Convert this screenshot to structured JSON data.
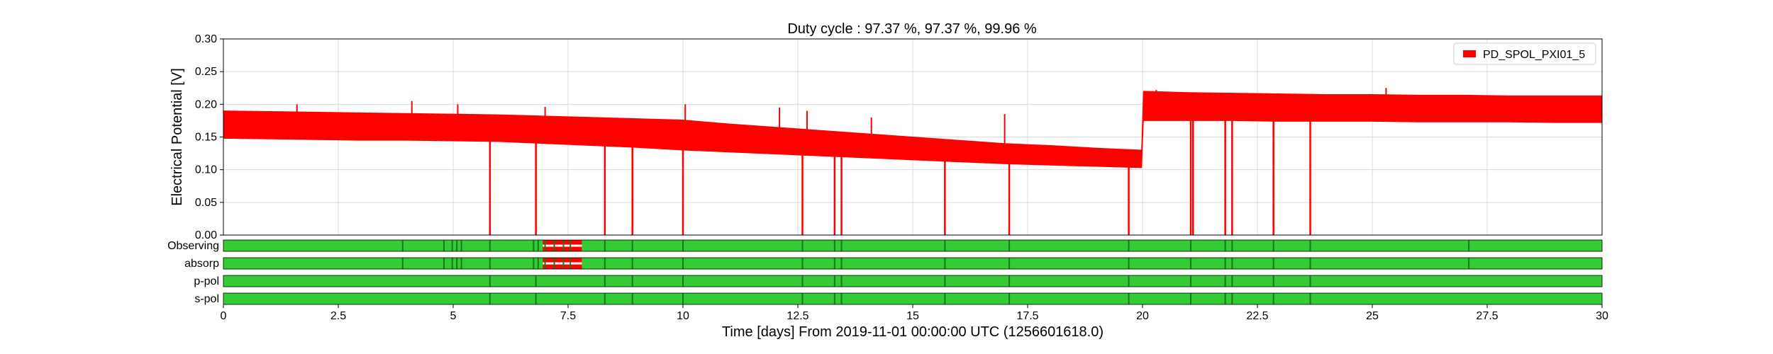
{
  "chart_data": {
    "type": "line",
    "title": "Duty cycle : 97.37 %, 97.37 %, 99.96 %",
    "xlabel": "Time [days] From 2019-11-01 00:00:00 UTC (1256601618.0)",
    "ylabel": "Electrical Potential [V]",
    "xlim": [
      0,
      30
    ],
    "ylim": [
      0,
      0.3
    ],
    "grid": true,
    "legend_position": "top-right",
    "x_ticks": [
      0,
      2.5,
      5,
      7.5,
      10,
      12.5,
      15,
      17.5,
      20,
      22.5,
      25,
      27.5,
      30
    ],
    "x_tick_labels": [
      "0",
      "2.5",
      "5",
      "7.5",
      "10",
      "12.5",
      "15",
      "17.5",
      "20",
      "22.5",
      "25",
      "27.5",
      "30"
    ],
    "y_ticks": [
      0,
      0.05,
      0.1,
      0.15,
      0.2,
      0.25,
      0.3
    ],
    "y_tick_labels": [
      "0.00",
      "0.05",
      "0.10",
      "0.15",
      "0.20",
      "0.25",
      "0.30"
    ],
    "series": [
      {
        "name": "PD_SPOL_PXI01_5",
        "color": "#ff0000",
        "band_x": [
          0,
          1,
          2,
          3,
          4,
          5,
          6,
          7,
          8,
          9,
          10,
          11,
          12,
          13,
          14,
          15,
          16,
          17,
          18,
          19,
          19.98,
          20.02,
          21,
          22,
          23,
          24,
          25,
          26,
          27,
          28,
          29,
          30
        ],
        "band_upper": [
          0.19,
          0.189,
          0.188,
          0.187,
          0.186,
          0.185,
          0.184,
          0.182,
          0.18,
          0.178,
          0.176,
          0.17,
          0.165,
          0.16,
          0.155,
          0.15,
          0.145,
          0.14,
          0.137,
          0.133,
          0.13,
          0.22,
          0.218,
          0.217,
          0.216,
          0.215,
          0.215,
          0.214,
          0.214,
          0.213,
          0.213,
          0.213
        ],
        "band_lower": [
          0.148,
          0.147,
          0.146,
          0.145,
          0.145,
          0.144,
          0.143,
          0.14,
          0.137,
          0.134,
          0.13,
          0.127,
          0.124,
          0.121,
          0.118,
          0.115,
          0.112,
          0.109,
          0.107,
          0.105,
          0.103,
          0.175,
          0.175,
          0.175,
          0.174,
          0.174,
          0.174,
          0.173,
          0.173,
          0.173,
          0.172,
          0.172
        ],
        "dropouts": [
          5.8,
          6.8,
          8.3,
          8.9,
          10.0,
          12.6,
          13.3,
          13.45,
          15.7,
          17.1,
          19.7,
          21.05,
          21.1,
          21.8,
          21.95,
          22.85,
          23.65
        ],
        "spikes": [
          [
            1.6,
            0.2
          ],
          [
            4.1,
            0.205
          ],
          [
            5.1,
            0.2
          ],
          [
            7.0,
            0.196
          ],
          [
            10.05,
            0.2
          ],
          [
            12.1,
            0.195
          ],
          [
            12.7,
            0.19
          ],
          [
            14.1,
            0.18
          ],
          [
            17.0,
            0.185
          ],
          [
            20.3,
            0.222
          ],
          [
            25.3,
            0.225
          ]
        ]
      }
    ],
    "state_bars": [
      {
        "name": "Observing",
        "inactive_spans": [
          [
            6.95,
            7.8
          ]
        ],
        "segment_lines": [
          3.9,
          4.8,
          4.98,
          5.08,
          5.18,
          5.8,
          6.75,
          6.85,
          7.0,
          7.2,
          7.4,
          7.55,
          8.3,
          8.9,
          10.0,
          12.6,
          13.3,
          13.45,
          15.7,
          17.1,
          19.7,
          21.05,
          21.8,
          21.95,
          22.85,
          23.65,
          27.1
        ]
      },
      {
        "name": "absorp",
        "inactive_spans": [
          [
            6.95,
            7.8
          ]
        ],
        "segment_lines": [
          3.9,
          4.8,
          4.98,
          5.08,
          5.18,
          5.8,
          6.75,
          6.85,
          7.0,
          7.2,
          7.4,
          7.55,
          8.3,
          8.9,
          10.0,
          12.6,
          13.3,
          13.45,
          15.7,
          17.1,
          19.7,
          21.05,
          21.8,
          21.95,
          22.85,
          23.65,
          27.1
        ]
      },
      {
        "name": "p-pol",
        "inactive_spans": [],
        "segment_lines": [
          5.8,
          6.8,
          8.3,
          8.9,
          10.0,
          12.6,
          13.3,
          13.45,
          15.7,
          17.1,
          19.7,
          21.05,
          21.8,
          21.95,
          22.85,
          23.65
        ]
      },
      {
        "name": "s-pol",
        "inactive_spans": [],
        "segment_lines": [
          5.8,
          6.8,
          8.3,
          8.9,
          10.0,
          12.6,
          13.3,
          13.45,
          15.7,
          17.1,
          19.7,
          21.05,
          21.8,
          21.95,
          22.85,
          23.65
        ]
      }
    ],
    "state_colors": {
      "active": "#33cc33",
      "inactive": "#ff0000",
      "segment_line": "#1a7a1a",
      "inactive_stripe": "#ffffff"
    }
  }
}
